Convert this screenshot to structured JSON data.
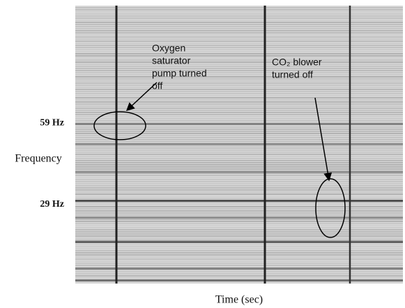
{
  "chart_data": {
    "type": "spectrogram",
    "xlabel": "Time (sec)",
    "ylabel": "Frequency",
    "ylim": [
      0,
      102
    ],
    "yticks": [
      {
        "value": 59,
        "label": "59 Hz"
      },
      {
        "value": 29,
        "label": "29 Hz"
      }
    ],
    "annotations": [
      {
        "lines": [
          "Oxygen",
          "saturator",
          "pump turned",
          "off"
        ]
      },
      {
        "lines": [
          "CO₂ blower",
          "turned off"
        ]
      }
    ]
  }
}
